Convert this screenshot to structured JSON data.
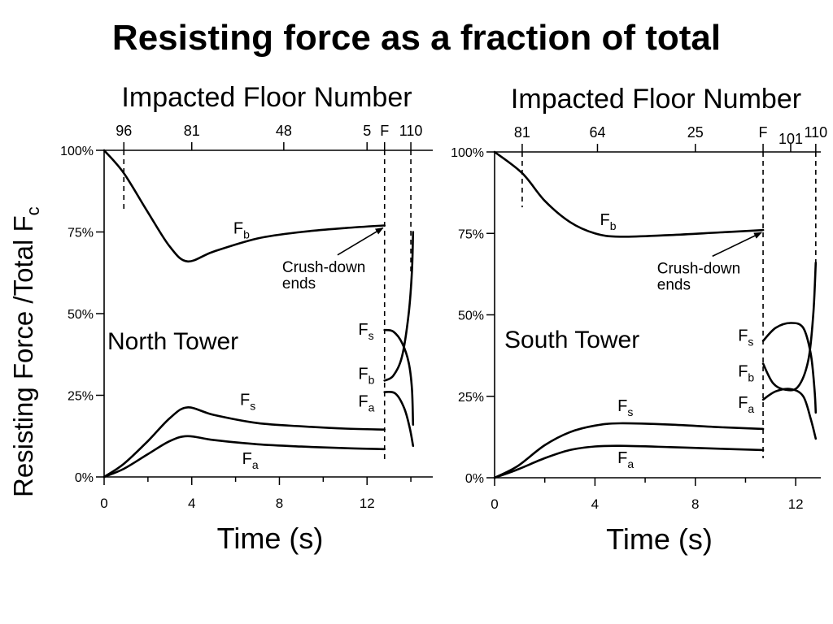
{
  "title": "Resisting force as a fraction of total",
  "y_axis_title": "Resisting Force /Total F",
  "y_axis_title_sub": "c",
  "chart_data": [
    {
      "type": "line",
      "panel_label": "North Tower",
      "top_axis_label": "Impacted Floor Number",
      "xlabel": "Time (s)",
      "xlim": [
        0,
        15
      ],
      "ylim": [
        0,
        100
      ],
      "x_ticks": [
        0,
        4,
        8,
        12
      ],
      "y_ticks": [
        {
          "v": 0,
          "label": "0%"
        },
        {
          "v": 25,
          "label": "25%"
        },
        {
          "v": 50,
          "label": "50%"
        },
        {
          "v": 75,
          "label": "75%"
        },
        {
          "v": 100,
          "label": "100%"
        }
      ],
      "top_ticks": [
        {
          "x": 0.9,
          "label": "96"
        },
        {
          "x": 4.0,
          "label": "81"
        },
        {
          "x": 8.2,
          "label": "48"
        },
        {
          "x": 12.0,
          "label": "5"
        },
        {
          "x": 12.8,
          "label": "F"
        },
        {
          "x": 14.0,
          "label": "110"
        }
      ],
      "vlines": [
        {
          "x": 0.9,
          "y_top": 100,
          "y_bottom": 82
        },
        {
          "x": 12.8,
          "y_top": 100,
          "y_bottom": 5
        },
        {
          "x": 14.0,
          "y_top": 100,
          "y_bottom": 62
        }
      ],
      "annotation": {
        "text_line1": "Crush-down",
        "text_line2": "ends",
        "text_x": 8.5,
        "text_y": 62,
        "arrow_to_x": 12.8,
        "arrow_to_y": 77
      },
      "series": [
        {
          "name": "F",
          "sub": "b",
          "label_x": 5.9,
          "label_y": 74.5,
          "points": [
            [
              0,
              100
            ],
            [
              0.9,
              93
            ],
            [
              2,
              81
            ],
            [
              3,
              70.5
            ],
            [
              3.8,
              66
            ],
            [
              5,
              69
            ],
            [
              7,
              73
            ],
            [
              9,
              75
            ],
            [
              11,
              76.2
            ],
            [
              12.8,
              77
            ]
          ]
        },
        {
          "name": "F",
          "sub": "s",
          "label_x": 6.2,
          "label_y": 22,
          "points": [
            [
              0,
              0
            ],
            [
              0.9,
              4
            ],
            [
              2,
              11
            ],
            [
              3,
              18
            ],
            [
              3.8,
              21.3
            ],
            [
              5,
              19
            ],
            [
              7,
              16.5
            ],
            [
              9,
              15.5
            ],
            [
              11,
              14.8
            ],
            [
              12.8,
              14.5
            ]
          ]
        },
        {
          "name": "F",
          "sub": "a",
          "label_x": 6.3,
          "label_y": 4,
          "points": [
            [
              0,
              0
            ],
            [
              0.9,
              2.5
            ],
            [
              2,
              7
            ],
            [
              3,
              11
            ],
            [
              3.8,
              12.5
            ],
            [
              5,
              11.3
            ],
            [
              7,
              10
            ],
            [
              9,
              9.3
            ],
            [
              11,
              8.8
            ],
            [
              12.8,
              8.5
            ]
          ]
        },
        {
          "name": "F",
          "sub": "s",
          "label_x": 11.6,
          "label_y": 43.5,
          "points": [
            [
              12.8,
              45
            ],
            [
              13.2,
              44.5
            ],
            [
              13.6,
              41
            ],
            [
              13.9,
              35
            ],
            [
              14.05,
              27
            ],
            [
              14.1,
              16
            ]
          ]
        },
        {
          "name": "F",
          "sub": "b",
          "label_x": 11.6,
          "label_y": 30,
          "points": [
            [
              12.8,
              29.5
            ],
            [
              13.2,
              31
            ],
            [
              13.6,
              37
            ],
            [
              13.9,
              50
            ],
            [
              14.05,
              63
            ],
            [
              14.1,
              75
            ]
          ]
        },
        {
          "name": "F",
          "sub": "a",
          "label_x": 11.6,
          "label_y": 21.5,
          "points": [
            [
              12.8,
              26
            ],
            [
              13.3,
              25.5
            ],
            [
              13.7,
              21
            ],
            [
              13.95,
              15
            ],
            [
              14.1,
              9.5
            ]
          ]
        }
      ]
    },
    {
      "type": "line",
      "panel_label": "South Tower",
      "top_axis_label": "Impacted Floor Number",
      "xlabel": "Time (s)",
      "xlim": [
        0,
        13
      ],
      "ylim": [
        0,
        100
      ],
      "x_ticks": [
        0,
        4,
        8,
        12
      ],
      "y_ticks": [
        {
          "v": 0,
          "label": "0%"
        },
        {
          "v": 25,
          "label": "25%"
        },
        {
          "v": 50,
          "label": "50%"
        },
        {
          "v": 75,
          "label": "75%"
        },
        {
          "v": 100,
          "label": "100%"
        }
      ],
      "top_ticks": [
        {
          "x": 1.1,
          "label": "81"
        },
        {
          "x": 4.1,
          "label": "64"
        },
        {
          "x": 8.0,
          "label": "25"
        },
        {
          "x": 10.7,
          "label": "F"
        },
        {
          "x": 11.8,
          "label": "101"
        },
        {
          "x": 12.8,
          "label": "110"
        }
      ],
      "vlines": [
        {
          "x": 1.1,
          "y_top": 100,
          "y_bottom": 83
        },
        {
          "x": 10.7,
          "y_top": 100,
          "y_bottom": 6
        },
        {
          "x": 12.8,
          "y_top": 100,
          "y_bottom": 66
        }
      ],
      "annotation": {
        "text_line1": "Crush-down",
        "text_line2": "ends",
        "text_x": 6.8,
        "text_y": 62,
        "arrow_to_x": 10.7,
        "arrow_to_y": 76
      },
      "series": [
        {
          "name": "F",
          "sub": "b",
          "label_x": 4.2,
          "label_y": 77.5,
          "points": [
            [
              0,
              100
            ],
            [
              1.1,
              93.5
            ],
            [
              2,
              85
            ],
            [
              3,
              78.5
            ],
            [
              4,
              75
            ],
            [
              5,
              74
            ],
            [
              7,
              74.5
            ],
            [
              9,
              75.3
            ],
            [
              10.7,
              76
            ]
          ]
        },
        {
          "name": "F",
          "sub": "s",
          "label_x": 4.9,
          "label_y": 20.5,
          "points": [
            [
              0,
              0
            ],
            [
              0.9,
              3.5
            ],
            [
              2,
              10
            ],
            [
              3,
              14
            ],
            [
              4,
              16
            ],
            [
              5,
              16.7
            ],
            [
              7,
              16.3
            ],
            [
              9,
              15.5
            ],
            [
              10.7,
              15
            ]
          ]
        },
        {
          "name": "F",
          "sub": "a",
          "label_x": 4.9,
          "label_y": 4.5,
          "points": [
            [
              0,
              0
            ],
            [
              0.9,
              2.5
            ],
            [
              2,
              6
            ],
            [
              3,
              8.5
            ],
            [
              4,
              9.6
            ],
            [
              5,
              9.8
            ],
            [
              7,
              9.4
            ],
            [
              9,
              8.9
            ],
            [
              10.7,
              8.5
            ]
          ]
        },
        {
          "name": "F",
          "sub": "s",
          "label_x": 9.7,
          "label_y": 42,
          "points": [
            [
              10.7,
              42
            ],
            [
              11.2,
              46
            ],
            [
              11.8,
              47.5
            ],
            [
              12.3,
              46
            ],
            [
              12.6,
              38
            ],
            [
              12.75,
              27
            ],
            [
              12.8,
              20
            ]
          ]
        },
        {
          "name": "F",
          "sub": "b",
          "label_x": 9.7,
          "label_y": 31,
          "points": [
            [
              10.7,
              35
            ],
            [
              11.1,
              29
            ],
            [
              11.6,
              27
            ],
            [
              12.1,
              28
            ],
            [
              12.5,
              36
            ],
            [
              12.7,
              50
            ],
            [
              12.8,
              66
            ]
          ]
        },
        {
          "name": "F",
          "sub": "a",
          "label_x": 9.7,
          "label_y": 21.5,
          "points": [
            [
              10.7,
              24
            ],
            [
              11.2,
              26.5
            ],
            [
              11.8,
              27.2
            ],
            [
              12.3,
              25
            ],
            [
              12.6,
              18
            ],
            [
              12.8,
              12
            ]
          ]
        }
      ]
    }
  ]
}
